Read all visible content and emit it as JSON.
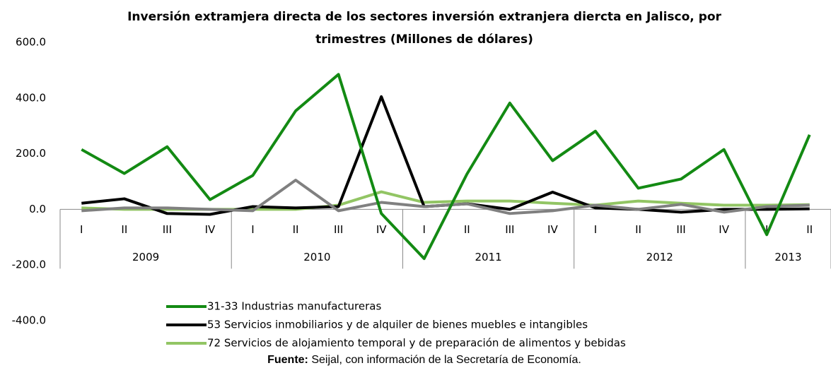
{
  "chart_data": {
    "type": "line",
    "title": [
      "Inversión extramjera directa  de los sectores inversión extranjera diercta en Jalisco, por",
      "trimestres (Millones de dólares)"
    ],
    "categories": [
      "I",
      "II",
      "III",
      "IV",
      "I",
      "II",
      "III",
      "IV",
      "I",
      "II",
      "III",
      "IV",
      "I",
      "II",
      "III",
      "IV",
      "I",
      "II"
    ],
    "groups": [
      {
        "label": "2009",
        "span": 4
      },
      {
        "label": "2010",
        "span": 4
      },
      {
        "label": "2011",
        "span": 4
      },
      {
        "label": "2012",
        "span": 4
      },
      {
        "label": "2013",
        "span": 2
      }
    ],
    "series": [
      {
        "name": "31-33 Industrias manufactureras",
        "color": "#138a13",
        "values": [
          215,
          129,
          225,
          35,
          122,
          354,
          485,
          -15,
          -177,
          127,
          382,
          175,
          281,
          76,
          109,
          215,
          -91,
          268
        ]
      },
      {
        "name": "53 Servicios inmobiliarios y de alquiler de bienes muebles e intangibles",
        "color": "#000000",
        "values": [
          22,
          38,
          -15,
          -18,
          10,
          5,
          10,
          405,
          10,
          20,
          0,
          62,
          5,
          0,
          -10,
          0,
          0,
          2
        ]
      },
      {
        "name": "72 Servicios de alojamiento temporal y de preparación de alimentos y bebidas",
        "color": "#92c564",
        "values": [
          5,
          0,
          0,
          0,
          0,
          0,
          15,
          63,
          25,
          30,
          30,
          22,
          15,
          30,
          22,
          15,
          15,
          17
        ]
      },
      {
        "color": "#808080",
        "values": [
          -5,
          5,
          5,
          0,
          -5,
          105,
          -5,
          25,
          10,
          20,
          -15,
          -5,
          15,
          0,
          18,
          -10,
          10,
          15
        ]
      }
    ],
    "ylim": [
      -400,
      600
    ],
    "yticks": [
      {
        "value": -400,
        "label": "-400.0"
      },
      {
        "value": -200,
        "label": "-200.0"
      },
      {
        "value": 0,
        "label": "0.0"
      },
      {
        "value": 200,
        "label": "200.0"
      },
      {
        "value": 400,
        "label": "400.0"
      },
      {
        "value": 600,
        "label": "600.0"
      }
    ],
    "source_label": "Fuente:",
    "source_text": " Seijal, con información de la Secretaría de Economía."
  }
}
